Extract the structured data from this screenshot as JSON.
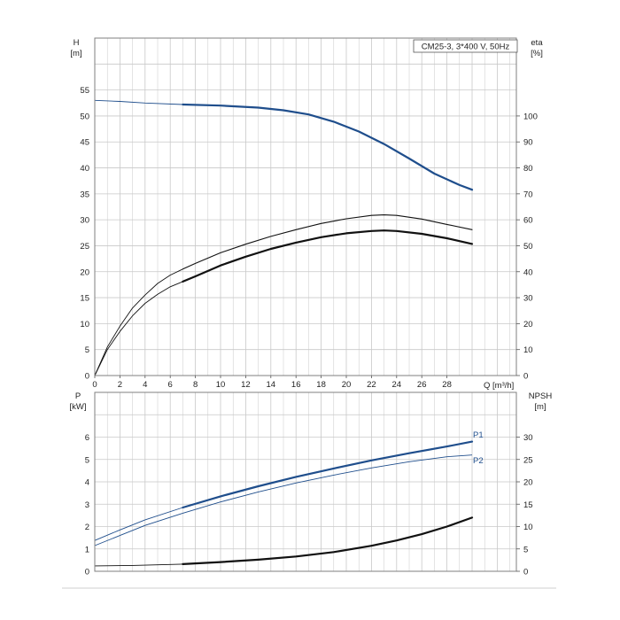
{
  "colors": {
    "grid": "#c8c8c8",
    "frame": "#7f7f7f",
    "blue": "#1f4e8c",
    "black": "#111111"
  },
  "chart_data": [
    {
      "type": "line",
      "title": "CM25-3, 3*400 V, 50Hz",
      "xlabel": "Q [m³/h]",
      "x_ticks": [
        "0",
        "2",
        "4",
        "6",
        "8",
        "10",
        "12",
        "14",
        "16",
        "18",
        "20",
        "22",
        "24",
        "26",
        "28"
      ],
      "xlim": [
        0,
        33.5
      ],
      "left_axis": {
        "label_line1": "H",
        "label_line2": "[m]",
        "ylim": [
          0,
          65
        ],
        "ticks": [
          "0",
          "5",
          "10",
          "15",
          "20",
          "25",
          "30",
          "35",
          "40",
          "45",
          "50",
          "55"
        ]
      },
      "right_axis": {
        "label_line1": "eta",
        "label_line2": "[%]",
        "ylim": [
          0,
          130
        ],
        "ticks": [
          "0",
          "10",
          "20",
          "30",
          "40",
          "50",
          "60",
          "70",
          "80",
          "90",
          "100"
        ]
      },
      "grid": true,
      "series": [
        {
          "key": "H",
          "axis": "left",
          "color": "blue",
          "thin_to": 7,
          "x": [
            0,
            2,
            4,
            7,
            10,
            13,
            15,
            17,
            19,
            21,
            23,
            25,
            27,
            29,
            30
          ],
          "y": [
            53,
            52.8,
            52.5,
            52.2,
            52.0,
            51.6,
            51.1,
            50.3,
            48.9,
            47,
            44.6,
            41.8,
            38.9,
            36.7,
            35.8
          ]
        },
        {
          "key": "eta_pump",
          "axis": "right",
          "color": "black",
          "thin_to": 7,
          "x": [
            0,
            1,
            2,
            3,
            4,
            5,
            6,
            7,
            8,
            10,
            12,
            14,
            16,
            18,
            20,
            22,
            23,
            24,
            26,
            28,
            30
          ],
          "y": [
            0,
            11,
            19,
            26,
            31,
            35.5,
            38.7,
            41,
            43.2,
            47.3,
            50.6,
            53.6,
            56.2,
            58.6,
            60.4,
            61.7,
            61.9,
            61.7,
            60.3,
            58.2,
            56.2
          ]
        },
        {
          "key": "eta_total",
          "axis": "right",
          "color": "black",
          "thin_to": 7,
          "x": [
            0,
            1,
            2,
            3,
            4,
            5,
            6,
            7,
            8,
            10,
            12,
            14,
            16,
            18,
            20,
            22,
            23,
            24,
            26,
            28,
            30
          ],
          "y": [
            0,
            10,
            17,
            23,
            27.8,
            31.3,
            34.2,
            36.2,
            38.2,
            42.4,
            45.8,
            48.8,
            51.2,
            53.3,
            54.8,
            55.7,
            55.9,
            55.7,
            54.6,
            52.9,
            50.7
          ]
        }
      ]
    },
    {
      "type": "line",
      "xlabel": "",
      "xlim": [
        0,
        33.5
      ],
      "left_axis": {
        "label_line1": "P",
        "label_line2": "[kW]",
        "ylim": [
          0,
          8
        ],
        "ticks": [
          "0",
          "1",
          "2",
          "3",
          "4",
          "5",
          "6"
        ]
      },
      "right_axis": {
        "label_line1": "NPSH",
        "label_line2": "[m]",
        "ylim": [
          0,
          40
        ],
        "ticks": [
          "0",
          "5",
          "10",
          "15",
          "20",
          "25",
          "30"
        ]
      },
      "grid": true,
      "series": [
        {
          "key": "P1",
          "name": "P1",
          "axis": "left",
          "color": "blue",
          "thin_to": 7,
          "x": [
            0,
            2,
            4,
            7,
            10,
            13,
            16,
            19,
            22,
            25,
            28,
            30
          ],
          "y": [
            1.38,
            1.85,
            2.3,
            2.85,
            3.35,
            3.8,
            4.22,
            4.6,
            4.96,
            5.28,
            5.58,
            5.8
          ]
        },
        {
          "key": "P2",
          "name": "P2",
          "axis": "left",
          "color": "blue",
          "thin_to": 30,
          "x": [
            0,
            2,
            4,
            7,
            10,
            13,
            16,
            19,
            22,
            25,
            28,
            30
          ],
          "y": [
            1.15,
            1.6,
            2.05,
            2.6,
            3.1,
            3.55,
            3.95,
            4.3,
            4.62,
            4.9,
            5.12,
            5.2
          ]
        },
        {
          "key": "NPSH",
          "axis": "right",
          "color": "black",
          "thin_to": 7,
          "x": [
            0,
            3,
            5,
            7,
            10,
            13,
            16,
            19,
            22,
            24,
            26,
            28,
            30
          ],
          "y": [
            1.2,
            1.3,
            1.45,
            1.6,
            2.05,
            2.6,
            3.3,
            4.3,
            5.7,
            6.9,
            8.3,
            10.0,
            12.0
          ]
        }
      ]
    }
  ]
}
